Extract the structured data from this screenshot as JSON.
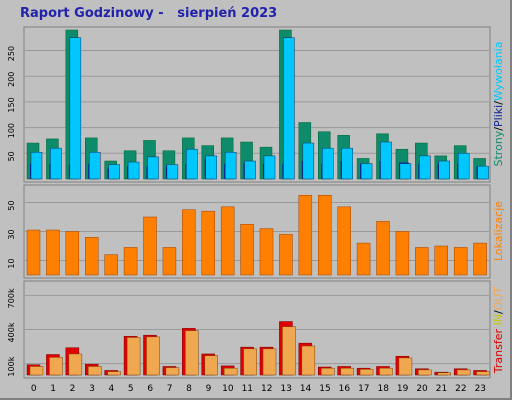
{
  "title": "Raport Godzinowy -   sierpień 2023",
  "colors": {
    "background": "#c0c0c0",
    "title": "#2222aa",
    "pages": "#0d8b6a",
    "files": "#0a1f9c",
    "visits": "#00c8ff",
    "sites": "#ff8000",
    "kbytes_in_out": "#e00000",
    "kbytes": "#f0a850"
  },
  "chart_data": [
    {
      "type": "bar",
      "panel": "top",
      "categories": [
        "0",
        "1",
        "2",
        "3",
        "4",
        "5",
        "6",
        "7",
        "8",
        "9",
        "10",
        "11",
        "12",
        "13",
        "14",
        "15",
        "16",
        "17",
        "18",
        "19",
        "20",
        "21",
        "22",
        "23"
      ],
      "ylim": [
        0,
        290
      ],
      "yticks": [
        "50",
        "100",
        "150",
        "200",
        "250"
      ],
      "ytick_values": [
        50,
        100,
        150,
        200,
        250
      ],
      "legend_label": "Strony/Pliki/Wywołania",
      "legend_parts": [
        "Strony",
        "/",
        "Pliki",
        "/",
        "Wywołania"
      ],
      "series": [
        {
          "name": "Strony",
          "key": "pages",
          "values": [
            70,
            78,
            290,
            80,
            35,
            55,
            75,
            55,
            80,
            65,
            80,
            72,
            62,
            290,
            110,
            92,
            85,
            40,
            88,
            58,
            70,
            45,
            65,
            40
          ]
        },
        {
          "name": "Pliki",
          "key": "files",
          "values": [
            30,
            30,
            28,
            30,
            20,
            25,
            25,
            25,
            30,
            40,
            30,
            30,
            30,
            30,
            35,
            30,
            35,
            30,
            35,
            32,
            30,
            30,
            30,
            25
          ]
        },
        {
          "name": "Wywołania",
          "key": "visits",
          "values": [
            52,
            60,
            275,
            52,
            28,
            33,
            43,
            28,
            58,
            45,
            52,
            35,
            45,
            275,
            70,
            60,
            60,
            30,
            72,
            30,
            45,
            35,
            50,
            25
          ]
        }
      ]
    },
    {
      "type": "bar",
      "panel": "middle",
      "categories": [
        "0",
        "1",
        "2",
        "3",
        "4",
        "5",
        "6",
        "7",
        "8",
        "9",
        "10",
        "11",
        "12",
        "13",
        "14",
        "15",
        "16",
        "17",
        "18",
        "19",
        "20",
        "21",
        "22",
        "23"
      ],
      "ylim": [
        0,
        60
      ],
      "yticks": [
        "10",
        "30",
        "50"
      ],
      "ytick_values": [
        10,
        30,
        50
      ],
      "legend_label": "Lokalizacje",
      "series": [
        {
          "name": "Lokalizacje",
          "key": "sites",
          "values": [
            31,
            31,
            30,
            26,
            14,
            19,
            40,
            19,
            45,
            44,
            47,
            35,
            32,
            28,
            55,
            55,
            47,
            22,
            37,
            30,
            19,
            20,
            19,
            22
          ]
        }
      ]
    },
    {
      "type": "bar",
      "panel": "bottom",
      "categories": [
        "0",
        "1",
        "2",
        "3",
        "4",
        "5",
        "6",
        "7",
        "8",
        "9",
        "10",
        "11",
        "12",
        "13",
        "14",
        "15",
        "16",
        "17",
        "18",
        "19",
        "20",
        "21",
        "22",
        "23"
      ],
      "ylim": [
        0,
        800000
      ],
      "yticks": [
        "100k",
        "400k",
        "700k"
      ],
      "ytick_values": [
        100000,
        400000,
        700000
      ],
      "legend_label": "Transfer IN/OUT",
      "legend_parts": [
        "Transfer",
        " ",
        "IN",
        "/",
        "OUT"
      ],
      "series": [
        {
          "name": "Transfer",
          "key": "kbytes_in_out",
          "values": [
            90000,
            180000,
            240000,
            95000,
            40000,
            340000,
            350000,
            75000,
            410000,
            185000,
            80000,
            245000,
            245000,
            470000,
            280000,
            70000,
            75000,
            60000,
            75000,
            165000,
            55000,
            25000,
            55000,
            40000
          ]
        },
        {
          "name": "IN/OUT",
          "key": "kbytes",
          "values": [
            75000,
            155000,
            185000,
            75000,
            30000,
            330000,
            335000,
            65000,
            390000,
            170000,
            60000,
            230000,
            230000,
            425000,
            255000,
            60000,
            60000,
            50000,
            60000,
            150000,
            45000,
            20000,
            45000,
            30000
          ]
        }
      ]
    }
  ]
}
